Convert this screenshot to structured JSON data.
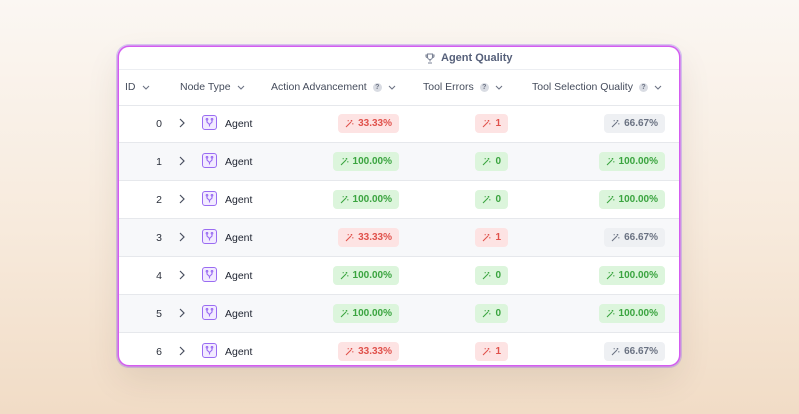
{
  "group_header": {
    "label": "Agent Quality",
    "icon": "trophy-icon"
  },
  "columns": {
    "id": "ID",
    "node_type": "Node Type",
    "action_advancement": "Action Advancement",
    "tool_errors": "Tool Errors",
    "tool_selection_quality": "Tool Selection Quality",
    "help_glyph": "?"
  },
  "colors": {
    "bad": "#e0514b",
    "bad_bg": "#fde3e3",
    "good": "#3aa43f",
    "good_bg": "#dcf5dc",
    "neutral": "#6a7282",
    "neutral_bg": "#eef0f3",
    "card_border": "#d45cf0",
    "node_icon": "#9a6cf2"
  },
  "rows": [
    {
      "id": "0",
      "node_type": "Agent",
      "action_advancement": {
        "value": "33.33%",
        "status": "red"
      },
      "tool_errors": {
        "value": "1",
        "status": "red"
      },
      "tool_selection_quality": {
        "value": "66.67%",
        "status": "gray"
      }
    },
    {
      "id": "1",
      "node_type": "Agent",
      "action_advancement": {
        "value": "100.00%",
        "status": "green"
      },
      "tool_errors": {
        "value": "0",
        "status": "green"
      },
      "tool_selection_quality": {
        "value": "100.00%",
        "status": "green"
      }
    },
    {
      "id": "2",
      "node_type": "Agent",
      "action_advancement": {
        "value": "100.00%",
        "status": "green"
      },
      "tool_errors": {
        "value": "0",
        "status": "green"
      },
      "tool_selection_quality": {
        "value": "100.00%",
        "status": "green"
      }
    },
    {
      "id": "3",
      "node_type": "Agent",
      "action_advancement": {
        "value": "33.33%",
        "status": "red"
      },
      "tool_errors": {
        "value": "1",
        "status": "red"
      },
      "tool_selection_quality": {
        "value": "66.67%",
        "status": "gray"
      }
    },
    {
      "id": "4",
      "node_type": "Agent",
      "action_advancement": {
        "value": "100.00%",
        "status": "green"
      },
      "tool_errors": {
        "value": "0",
        "status": "green"
      },
      "tool_selection_quality": {
        "value": "100.00%",
        "status": "green"
      }
    },
    {
      "id": "5",
      "node_type": "Agent",
      "action_advancement": {
        "value": "100.00%",
        "status": "green"
      },
      "tool_errors": {
        "value": "0",
        "status": "green"
      },
      "tool_selection_quality": {
        "value": "100.00%",
        "status": "green"
      }
    },
    {
      "id": "6",
      "node_type": "Agent",
      "action_advancement": {
        "value": "33.33%",
        "status": "red"
      },
      "tool_errors": {
        "value": "1",
        "status": "red"
      },
      "tool_selection_quality": {
        "value": "66.67%",
        "status": "gray"
      }
    }
  ]
}
